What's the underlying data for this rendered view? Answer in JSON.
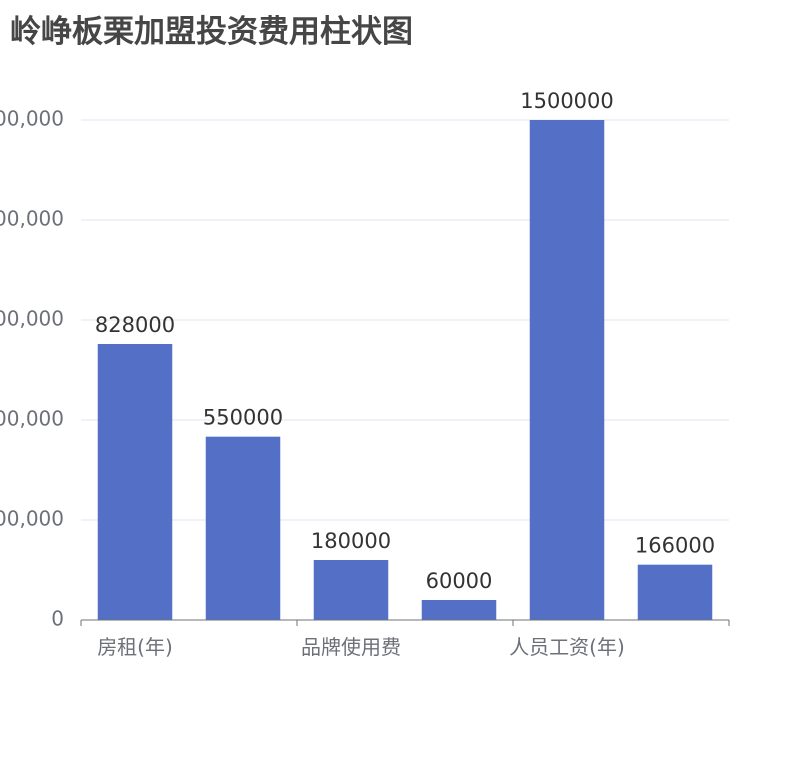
{
  "chart_data": {
    "type": "bar",
    "title": "岭峥板栗加盟投资费用柱状图",
    "categories": [
      "房租(年)",
      "",
      "品牌使用费",
      "",
      "人员工资(年)",
      ""
    ],
    "values": [
      828000,
      550000,
      180000,
      60000,
      1500000,
      166000
    ],
    "data_labels": [
      "828000",
      "550000",
      "180000",
      "60000",
      "1500000",
      "166000"
    ],
    "ylim": [
      0,
      1500000
    ],
    "y_ticks": [
      0,
      300000,
      600000,
      900000,
      1200000,
      1500000
    ],
    "y_tick_labels": [
      "0",
      "00,000",
      "00,000",
      "00,000",
      "00,000",
      "00,000"
    ],
    "bar_color": "#5470c6",
    "grid": true,
    "legend": "none"
  }
}
